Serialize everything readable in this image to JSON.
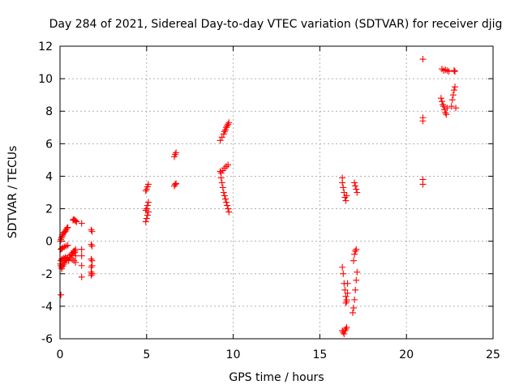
{
  "chart_data": {
    "type": "scatter",
    "title": "Day 284 of 2021, Sidereal Day-to-day VTEC variation (SDTVAR) for receiver djig",
    "xlabel": "GPS time / hours",
    "ylabel": "SDTVAR / TECUs",
    "xlim": [
      0,
      25
    ],
    "ylim": [
      -6,
      12
    ],
    "xticks": [
      "0",
      "5",
      "10",
      "15",
      "20",
      "25"
    ],
    "yticks": [
      "-6",
      "-4",
      "-2",
      "0",
      "2",
      "4",
      "6",
      "8",
      "10",
      "12"
    ],
    "grid": true,
    "marker": "+",
    "series": [
      {
        "name": "SDTVAR",
        "color": "#ff0000",
        "x": [
          0.02,
          0.05,
          0.08,
          0.12,
          0.15,
          0.2,
          0.25,
          0.3,
          0.35,
          0.4,
          0.45,
          0.05,
          0.1,
          0.15,
          0.25,
          0.35,
          0.45,
          0.05,
          0.1,
          0.15,
          0.2,
          0.25,
          0.3,
          0.35,
          0.4,
          0.5,
          0.6,
          0.7,
          0.8,
          0.9,
          0.02,
          0.05,
          0.08,
          0.1,
          0.15,
          0.2,
          0.25,
          0.3,
          0.35,
          0.45,
          0.55,
          0.65,
          0.75,
          0.85,
          0.9,
          0.05,
          0.75,
          0.8,
          0.85,
          0.9,
          0.95,
          0.7,
          0.75,
          0.8,
          0.85,
          0.9,
          1.25,
          1.25,
          1.25,
          1.25,
          1.25,
          1.8,
          1.85,
          1.8,
          1.85,
          1.8,
          1.85,
          1.8,
          1.85,
          1.8,
          1.85,
          1.8,
          1.85,
          4.95,
          5.0,
          5.05,
          5.1,
          4.95,
          5.0,
          5.05,
          5.1,
          4.95,
          5.0,
          5.05,
          5.1,
          6.6,
          6.65,
          6.7,
          6.6,
          6.65,
          6.7,
          9.25,
          9.35,
          9.45,
          9.5,
          9.55,
          9.6,
          9.65,
          9.7,
          9.75,
          9.3,
          9.4,
          9.5,
          9.6,
          9.7,
          9.25,
          9.3,
          9.35,
          9.4,
          9.45,
          9.5,
          9.55,
          9.6,
          9.65,
          9.7,
          9.75,
          16.3,
          16.3,
          16.35,
          16.4,
          16.45,
          16.5,
          16.55,
          16.3,
          16.35,
          16.4,
          16.45,
          16.5,
          16.55,
          16.6,
          16.6,
          16.55,
          16.5,
          16.3,
          16.35,
          16.4,
          16.45,
          16.5,
          16.55,
          17.0,
          17.05,
          17.1,
          17.15,
          16.9,
          16.95,
          17.0,
          17.05,
          17.1,
          17.15,
          16.95,
          17.0,
          17.05,
          17.1,
          20.95,
          20.95,
          20.95,
          20.95,
          20.95,
          22.05,
          22.15,
          22.25,
          22.35,
          22.45,
          22.75,
          22.8,
          22.0,
          22.05,
          22.1,
          22.15,
          22.2,
          22.25,
          22.3,
          22.35,
          22.6,
          22.65,
          22.7,
          22.75,
          22.8,
          22.85
        ],
        "y": [
          0.0,
          0.1,
          0.2,
          0.3,
          0.4,
          0.5,
          0.55,
          0.6,
          0.7,
          0.8,
          0.85,
          -0.5,
          -0.45,
          -0.4,
          -0.35,
          -0.3,
          -0.25,
          -1.2,
          -1.1,
          -1.15,
          -1.05,
          -1.1,
          -1.0,
          -1.05,
          -1.15,
          -1.2,
          -1.0,
          -1.1,
          -1.2,
          -1.3,
          -1.4,
          -1.5,
          -1.6,
          -1.7,
          -1.55,
          -1.45,
          -1.35,
          -1.2,
          -1.1,
          -1.0,
          -0.9,
          -0.8,
          -0.7,
          -0.6,
          -0.5,
          -3.3,
          1.3,
          1.35,
          1.3,
          1.25,
          1.2,
          -0.8,
          -0.7,
          -0.6,
          -0.7,
          -0.9,
          1.1,
          -0.5,
          -0.9,
          -1.5,
          -2.2,
          0.7,
          0.6,
          -0.2,
          -0.3,
          -1.1,
          -1.2,
          -1.6,
          -1.5,
          -1.9,
          -2.0,
          -2.1,
          -2.0,
          1.2,
          1.4,
          1.6,
          1.8,
          1.9,
          2.0,
          2.2,
          2.4,
          3.1,
          3.2,
          3.35,
          3.5,
          5.2,
          5.35,
          5.45,
          3.4,
          3.5,
          3.55,
          6.2,
          6.4,
          6.6,
          6.75,
          6.85,
          7.0,
          7.1,
          7.2,
          7.3,
          4.2,
          4.35,
          4.5,
          4.6,
          4.7,
          4.3,
          3.9,
          3.6,
          3.3,
          3.0,
          2.8,
          2.6,
          2.4,
          2.2,
          2.0,
          1.8,
          3.9,
          3.6,
          3.3,
          3.0,
          2.7,
          2.5,
          2.8,
          -1.6,
          -2.0,
          -2.6,
          -3.0,
          -3.4,
          -3.6,
          -3.2,
          -2.6,
          -3.7,
          -3.8,
          -5.5,
          -5.6,
          -5.7,
          -5.5,
          -5.4,
          -5.3,
          3.6,
          3.4,
          3.2,
          3.0,
          -4.4,
          -4.1,
          -3.6,
          -3.0,
          -2.4,
          -1.9,
          -1.2,
          -0.8,
          -0.6,
          -0.5,
          11.2,
          7.6,
          7.4,
          3.8,
          3.5,
          10.6,
          10.5,
          10.55,
          10.5,
          10.45,
          10.5,
          10.45,
          8.8,
          8.6,
          8.4,
          8.3,
          8.1,
          7.9,
          7.8,
          8.2,
          8.3,
          8.7,
          9.0,
          9.3,
          9.5,
          8.2
        ]
      }
    ]
  }
}
